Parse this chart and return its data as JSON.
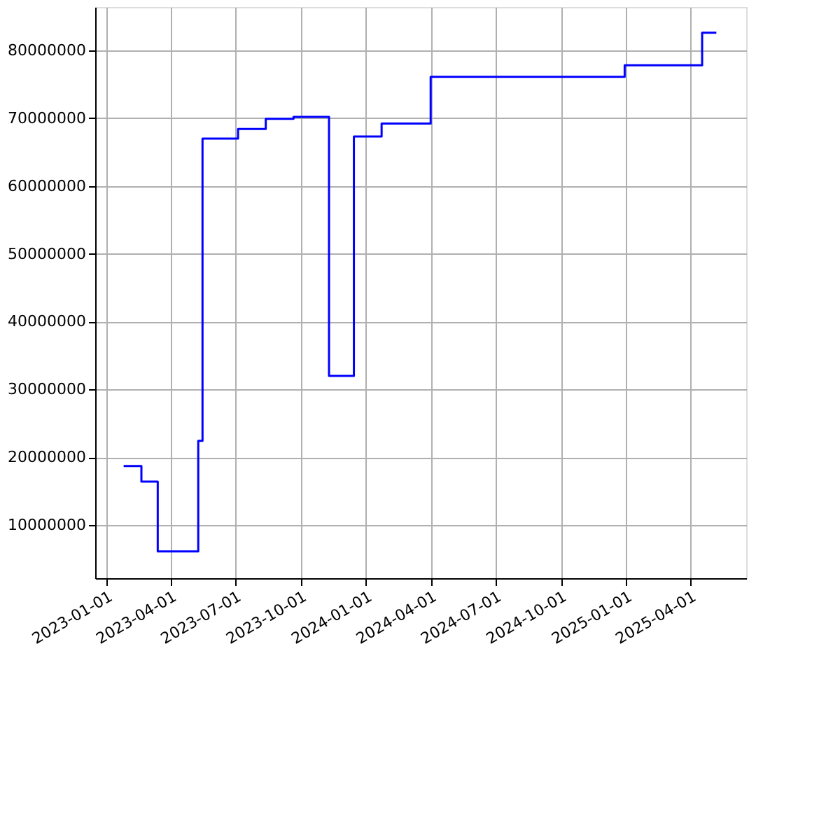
{
  "chart_data": {
    "type": "step",
    "x": [
      "2023-01-25",
      "2023-02-19",
      "2023-03-14",
      "2023-05-10",
      "2023-05-15",
      "2023-05-16",
      "2023-07-05",
      "2023-08-13",
      "2023-09-21",
      "2023-11-10",
      "2023-12-15",
      "2024-01-23",
      "2024-04-01",
      "2024-12-30",
      "2025-04-18",
      "2025-05-08"
    ],
    "series": [
      {
        "color": "#0000ff",
        "values": [
          18700000,
          16400000,
          6100000,
          22400000,
          22400000,
          67000000,
          68400000,
          69900000,
          70200000,
          32000000,
          67300000,
          69200000,
          76100000,
          77800000,
          82600000,
          82600000
        ]
      }
    ],
    "xlim": [
      "2022-12-16",
      "2025-06-19"
    ],
    "xticks": [
      "2023-01-01",
      "2023-04-01",
      "2023-07-01",
      "2023-10-01",
      "2024-01-01",
      "2024-04-01",
      "2024-07-01",
      "2024-10-01",
      "2025-01-01",
      "2025-04-01"
    ],
    "ylim": [
      2150000,
      86400000
    ],
    "yticks": [
      10000000,
      20000000,
      30000000,
      40000000,
      50000000,
      60000000,
      70000000,
      80000000
    ],
    "grid": true,
    "marker": "none",
    "line_style": "solid"
  }
}
